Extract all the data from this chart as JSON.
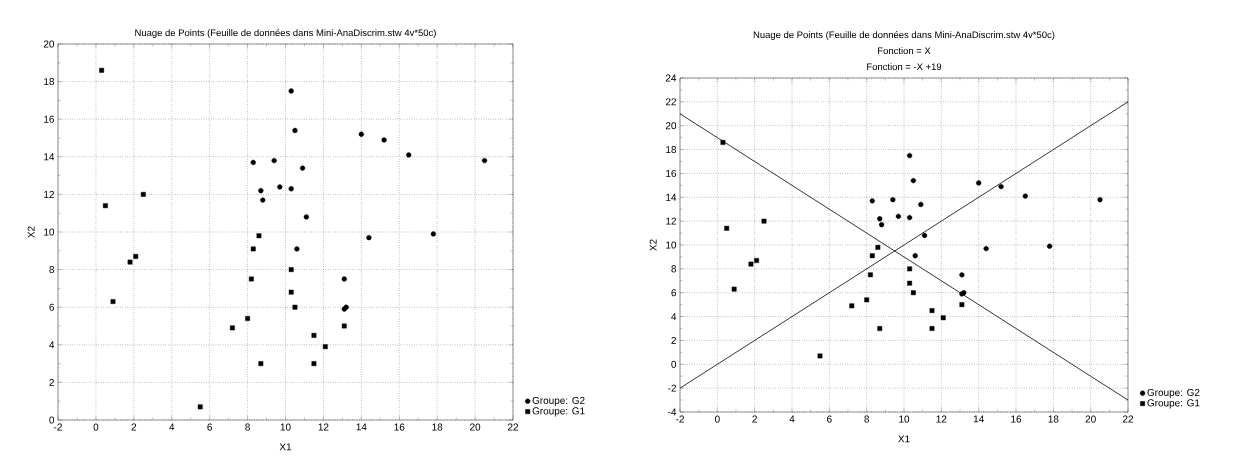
{
  "chart_data": [
    {
      "type": "scatter",
      "title": "Nuage de Points (Feuille de données dans Mini-AnaDiscrim.stw 4v*50c)",
      "xlabel": "X1",
      "ylabel": "X2",
      "xlim": [
        -2,
        22
      ],
      "ylim": [
        0,
        20
      ],
      "xticks": [
        -2,
        0,
        2,
        4,
        6,
        8,
        10,
        12,
        14,
        16,
        18,
        20,
        22
      ],
      "yticks": [
        0,
        2,
        4,
        6,
        8,
        10,
        12,
        14,
        16,
        18,
        20
      ],
      "grid": true,
      "legend": "bottom right",
      "series": [
        {
          "name": "Groupe: G2",
          "color": "#000000",
          "marker": "circle",
          "x": [
            10.3,
            10.5,
            14.0,
            15.2,
            16.5,
            20.5,
            8.3,
            9.4,
            10.9,
            8.7,
            9.7,
            10.3,
            8.8,
            11.1,
            14.4,
            17.8,
            10.6,
            13.1,
            13.1,
            13.2
          ],
          "values": [
            17.5,
            15.4,
            15.2,
            14.9,
            14.1,
            13.8,
            13.7,
            13.8,
            13.4,
            12.2,
            12.4,
            12.3,
            11.7,
            10.8,
            9.7,
            9.9,
            9.1,
            7.5,
            5.9,
            6.0
          ]
        },
        {
          "name": "Groupe: G1",
          "color": "#000000",
          "marker": "square",
          "x": [
            0.3,
            0.5,
            2.5,
            2.1,
            1.8,
            0.9,
            5.5,
            7.2,
            8.0,
            8.2,
            8.3,
            8.6,
            8.7,
            10.3,
            10.3,
            10.5,
            11.5,
            12.1,
            11.5,
            13.1
          ],
          "values": [
            18.6,
            11.4,
            12.0,
            8.7,
            8.4,
            6.3,
            0.7,
            4.9,
            5.4,
            7.5,
            9.1,
            9.8,
            3.0,
            8.0,
            6.8,
            6.0,
            4.5,
            3.9,
            3.0,
            5.0
          ]
        }
      ]
    },
    {
      "type": "scatter",
      "title": "Nuage de Points (Feuille de données dans Mini-AnaDiscrim.stw 4v*50c)",
      "annotations": [
        "Fonction = X",
        "Fonction = -X +19"
      ],
      "xlabel": "X1",
      "ylabel": "X2",
      "xlim": [
        -2,
        22
      ],
      "ylim": [
        -4,
        24
      ],
      "xticks": [
        -2,
        0,
        2,
        4,
        6,
        8,
        10,
        12,
        14,
        16,
        18,
        20,
        22
      ],
      "yticks": [
        -4,
        -2,
        0,
        2,
        4,
        6,
        8,
        10,
        12,
        14,
        16,
        18,
        20,
        22,
        24
      ],
      "grid": true,
      "legend": "bottom right",
      "series": [
        {
          "name": "Groupe: G2",
          "color": "#000000",
          "marker": "circle",
          "x": [
            10.3,
            10.5,
            14.0,
            15.2,
            16.5,
            20.5,
            8.3,
            9.4,
            10.9,
            8.7,
            9.7,
            10.3,
            8.8,
            11.1,
            14.4,
            17.8,
            10.6,
            13.1,
            13.1,
            13.2
          ],
          "values": [
            17.5,
            15.4,
            15.2,
            14.9,
            14.1,
            13.8,
            13.7,
            13.8,
            13.4,
            12.2,
            12.4,
            12.3,
            11.7,
            10.8,
            9.7,
            9.9,
            9.1,
            7.5,
            5.9,
            6.0
          ]
        },
        {
          "name": "Groupe: G1",
          "color": "#000000",
          "marker": "square",
          "x": [
            0.3,
            0.5,
            2.5,
            2.1,
            1.8,
            0.9,
            5.5,
            7.2,
            8.0,
            8.2,
            8.3,
            8.6,
            8.7,
            10.3,
            10.3,
            10.5,
            11.5,
            12.1,
            11.5,
            13.1
          ],
          "values": [
            18.6,
            11.4,
            12.0,
            8.7,
            8.4,
            6.3,
            0.7,
            4.9,
            5.4,
            7.5,
            9.1,
            9.8,
            3.0,
            8.0,
            6.8,
            6.0,
            4.5,
            3.9,
            3.0,
            5.0
          ]
        },
        {
          "type": "line",
          "color": "#000000",
          "marker": "none",
          "line_style": "solid",
          "x": [
            -2,
            22
          ],
          "values": [
            -2,
            22
          ]
        },
        {
          "type": "line",
          "color": "#000000",
          "marker": "none",
          "line_style": "solid",
          "x": [
            -2,
            22
          ],
          "values": [
            21,
            -3
          ]
        }
      ]
    }
  ]
}
